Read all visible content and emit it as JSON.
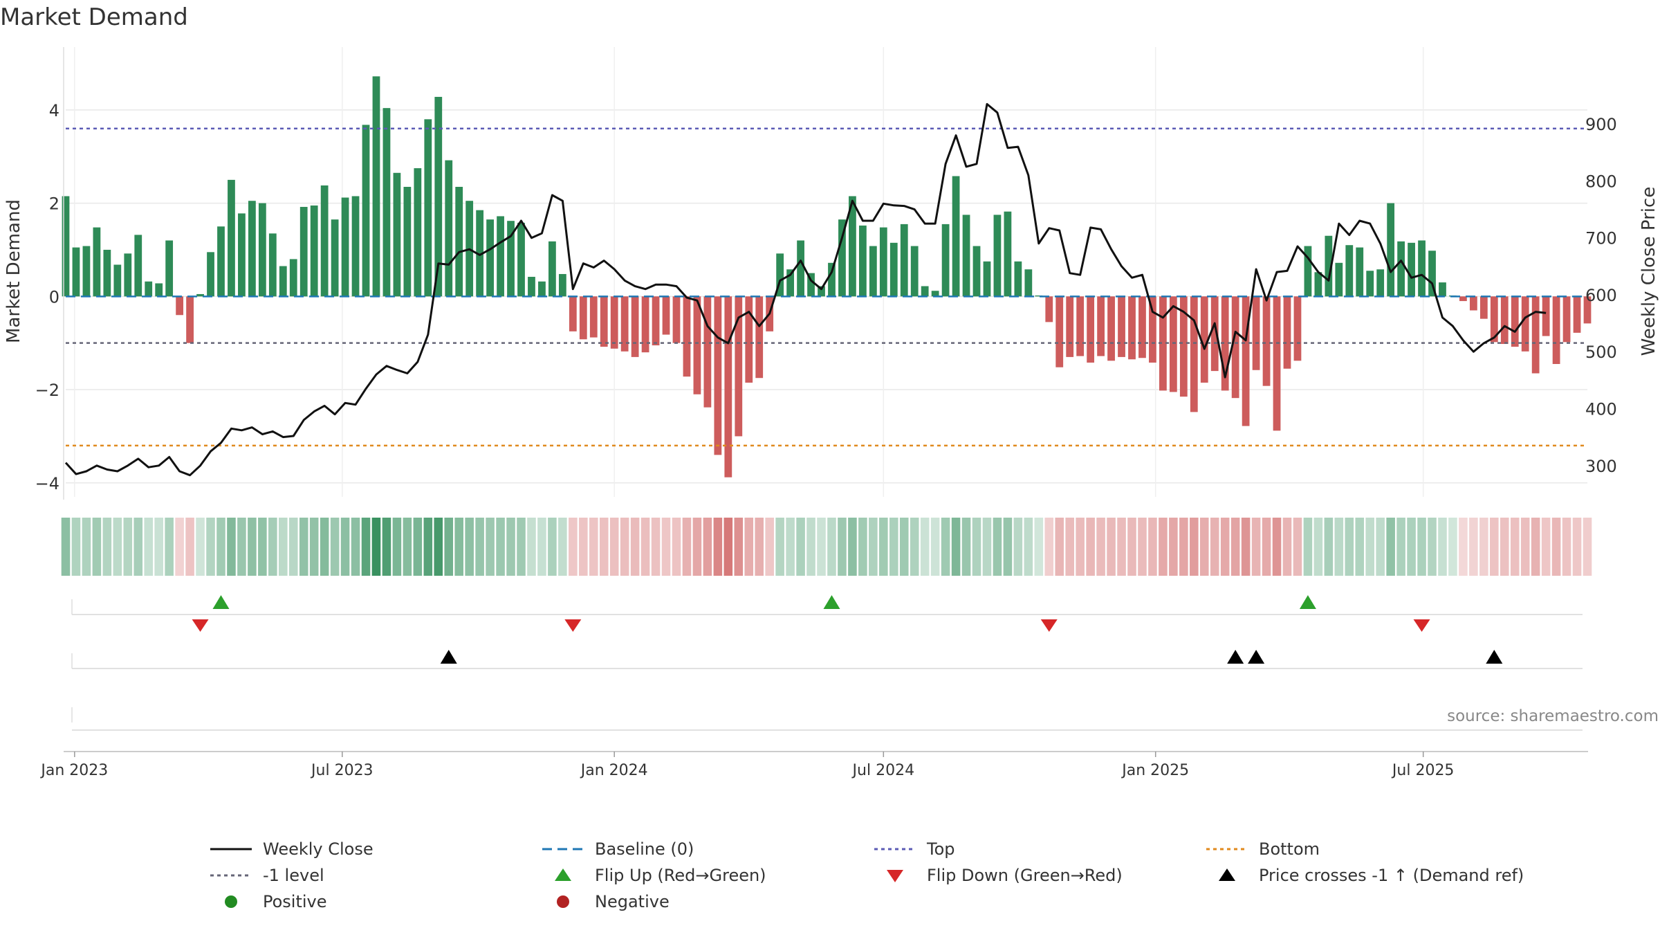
{
  "title": "Market Demand",
  "source": "source: sharemaestro.com",
  "colors": {
    "positive_bar": "#2e8b57",
    "negative_bar": "#cd5c5c",
    "price_line": "#111111",
    "baseline": "#1f77b4",
    "top_line": "#5b5bb5",
    "minus_one_line": "#666677",
    "bottom_line": "#e08a1e",
    "flip_up": "#2ca02c",
    "flip_down": "#d62728",
    "price_cross": "#000000",
    "positive_dot": "#228b22",
    "negative_dot": "#b22222"
  },
  "legend": [
    {
      "key": "weekly_close",
      "label": "Weekly Close",
      "symbol": "line-solid",
      "color": "#111111"
    },
    {
      "key": "baseline",
      "label": "Baseline (0)",
      "symbol": "line-dash",
      "color": "#1f77b4"
    },
    {
      "key": "top",
      "label": "Top",
      "symbol": "line-dot",
      "color": "#5b5bb5"
    },
    {
      "key": "bottom",
      "label": "Bottom",
      "symbol": "line-dot",
      "color": "#e08a1e"
    },
    {
      "key": "minus_one",
      "label": "-1 level",
      "symbol": "line-dot",
      "color": "#666677"
    },
    {
      "key": "flip_up",
      "label": "Flip Up (Red→Green)",
      "symbol": "triangle-up",
      "color": "#2ca02c"
    },
    {
      "key": "flip_down",
      "label": "Flip Down (Green→Red)",
      "symbol": "triangle-down",
      "color": "#d62728"
    },
    {
      "key": "price_cross",
      "label": "Price crosses -1 ↑ (Demand ref)",
      "symbol": "triangle-up",
      "color": "#000000"
    },
    {
      "key": "positive",
      "label": "Positive",
      "symbol": "circle",
      "color": "#228b22"
    },
    {
      "key": "negative",
      "label": "Negative",
      "symbol": "circle",
      "color": "#b22222"
    }
  ],
  "chart_data": {
    "type": "bar",
    "title": "Market Demand",
    "ylabel": "Market Demand",
    "y2label": "Weekly Close Price",
    "ylim": [
      -4.3,
      5.2
    ],
    "y2lim": [
      245,
      1023
    ],
    "yticks": [
      -4,
      -2,
      0,
      2,
      4
    ],
    "yticklabels": [
      "−4",
      "−2",
      "0",
      "2",
      "4"
    ],
    "y2ticks": [
      300,
      400,
      500,
      600,
      700,
      800,
      900
    ],
    "xticks": [
      "2023-01-01",
      "2023-07-01",
      "2024-01-01",
      "2024-07-01",
      "2025-01-01",
      "2025-07-01"
    ],
    "xticklabels": [
      "Jan 2023",
      "Jul 2023",
      "Jan 2024",
      "Jul 2024",
      "Jan 2025",
      "Jul 2025"
    ],
    "reference_lines": {
      "baseline": 0,
      "top": 3.6,
      "minus_one": -1,
      "bottom": -3.2
    },
    "grid": true,
    "x_start": "2022-12-26",
    "x_step_days": 7,
    "series": [
      {
        "name": "Market Demand",
        "type": "bar",
        "values": [
          2.15,
          1.05,
          1.08,
          1.48,
          1.0,
          0.68,
          0.92,
          1.32,
          0.32,
          0.28,
          1.2,
          -0.4,
          -1.0,
          0.05,
          0.95,
          1.5,
          2.5,
          1.78,
          2.05,
          2.0,
          1.35,
          0.65,
          0.8,
          1.92,
          1.95,
          2.38,
          1.65,
          2.12,
          2.15,
          3.68,
          4.72,
          4.04,
          2.65,
          2.35,
          2.75,
          3.8,
          4.28,
          2.92,
          2.35,
          2.05,
          1.85,
          1.65,
          1.72,
          1.62,
          1.58,
          0.42,
          0.32,
          1.18,
          0.48,
          -0.75,
          -0.92,
          -0.88,
          -1.08,
          -1.12,
          -1.18,
          -1.3,
          -1.2,
          -1.05,
          -0.82,
          -1.0,
          -1.72,
          -2.1,
          -2.38,
          -3.4,
          -3.88,
          -3.0,
          -1.85,
          -1.75,
          -0.75,
          0.92,
          0.58,
          1.2,
          0.5,
          0.22,
          0.72,
          1.65,
          2.15,
          1.52,
          1.08,
          1.48,
          1.15,
          1.55,
          1.08,
          0.22,
          0.12,
          1.55,
          2.58,
          1.75,
          1.08,
          0.75,
          1.75,
          1.82,
          0.75,
          0.58,
          0.02,
          -0.55,
          -1.52,
          -1.3,
          -1.28,
          -1.42,
          -1.28,
          -1.38,
          -1.3,
          -1.35,
          -1.32,
          -1.42,
          -2.02,
          -2.05,
          -2.15,
          -2.48,
          -1.85,
          -1.6,
          -2.02,
          -2.18,
          -2.78,
          -1.58,
          -1.92,
          -2.88,
          -1.55,
          -1.38,
          1.08,
          0.52,
          1.3,
          0.72,
          1.1,
          1.05,
          0.55,
          0.58,
          2.0,
          1.18,
          1.15,
          1.2,
          0.98,
          0.3,
          0.02,
          -0.1,
          -0.3,
          -0.48,
          -0.98,
          -1.02,
          -1.08,
          -1.18,
          -1.65,
          -0.85,
          -1.45,
          -0.98,
          -0.78,
          -0.58
        ]
      },
      {
        "name": "Weekly Close",
        "type": "line",
        "axis": "y2",
        "values": [
          305,
          285,
          290,
          300,
          293,
          290,
          300,
          312,
          297,
          300,
          315,
          290,
          283,
          300,
          325,
          340,
          365,
          362,
          367,
          355,
          360,
          350,
          352,
          380,
          395,
          405,
          390,
          410,
          407,
          435,
          460,
          475,
          468,
          462,
          482,
          530,
          655,
          653,
          675,
          680,
          670,
          680,
          692,
          703,
          730,
          700,
          708,
          775,
          765,
          610,
          655,
          648,
          660,
          645,
          625,
          615,
          610,
          618,
          618,
          615,
          595,
          590,
          545,
          525,
          515,
          560,
          570,
          545,
          567,
          625,
          635,
          660,
          625,
          610,
          640,
          700,
          765,
          730,
          730,
          760,
          757,
          756,
          750,
          725,
          725,
          830,
          880,
          825,
          830,
          935,
          920,
          858,
          860,
          810,
          690,
          717,
          713,
          638,
          635,
          718,
          715,
          680,
          650,
          630,
          635,
          570,
          560,
          580,
          570,
          555,
          505,
          550,
          455,
          535,
          520,
          645,
          590,
          640,
          642,
          685,
          665,
          640,
          625,
          725,
          705,
          730,
          725,
          690,
          640,
          660,
          630,
          635,
          620,
          560,
          545,
          520,
          500,
          515,
          525,
          545,
          535,
          560,
          570,
          568
        ]
      },
      {
        "name": "Flip Up (Red→Green)",
        "type": "event",
        "dates": [
          "2023-04-10",
          "2024-05-27",
          "2025-04-14"
        ]
      },
      {
        "name": "Flip Down (Green→Red)",
        "type": "event",
        "dates": [
          "2023-03-27",
          "2023-12-04",
          "2024-10-21",
          "2025-06-30"
        ]
      },
      {
        "name": "Price crosses -1 ↑ (Demand ref)",
        "type": "event",
        "dates": [
          "2023-09-11",
          "2025-02-24",
          "2025-03-10",
          "2025-08-18"
        ]
      }
    ]
  }
}
